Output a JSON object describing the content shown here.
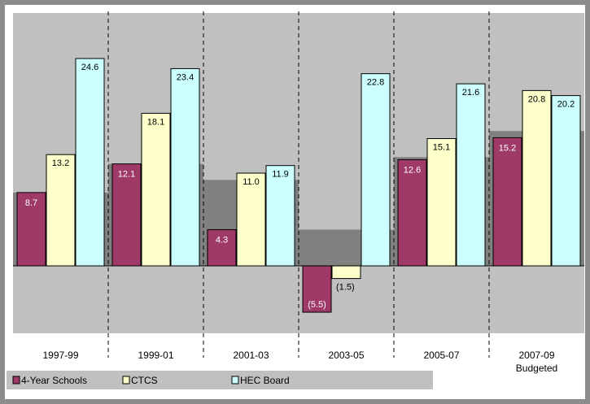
{
  "chart_data": {
    "type": "bar",
    "categories": [
      [
        "1997-99"
      ],
      [
        "1999-01"
      ],
      [
        "2001-03"
      ],
      [
        "2003-05"
      ],
      [
        "2005-07"
      ],
      [
        "2007-09",
        "Budgeted"
      ]
    ],
    "series": [
      {
        "name": "4-Year Schools",
        "values": [
          8.7,
          12.1,
          4.3,
          -5.5,
          12.6,
          15.2
        ],
        "labels": [
          "8.7",
          "12.1",
          "4.3",
          "(5.5)",
          "12.6",
          "15.2"
        ],
        "color": "#9e3968",
        "label_color": "#ffffff"
      },
      {
        "name": "CTCS",
        "values": [
          13.2,
          18.1,
          11.0,
          -1.5,
          15.1,
          20.8
        ],
        "labels": [
          "13.2",
          "18.1",
          "11.0",
          "(1.5)",
          "15.1",
          "20.8"
        ],
        "color": "#ffffcc",
        "label_color": "#000000"
      },
      {
        "name": "HEC Board",
        "values": [
          24.6,
          23.4,
          11.9,
          22.8,
          21.6,
          20.2
        ],
        "labels": [
          "24.6",
          "23.4",
          "11.9",
          "22.8",
          "21.6",
          "20.2"
        ],
        "color": "#ccffff",
        "label_color": "#000000"
      }
    ],
    "background_band_values": [
      8.7,
      12.1,
      10.2,
      4.3,
      12.9,
      16.0
    ],
    "ylim": [
      -8.0,
      30.0
    ],
    "colors": {
      "plot_bg": "#c0c0c0",
      "band": "#808080",
      "legend_bg": "#c0c0c0",
      "frame": "#8c8c8c"
    },
    "grid": false,
    "legend_position": "bottom-left"
  }
}
